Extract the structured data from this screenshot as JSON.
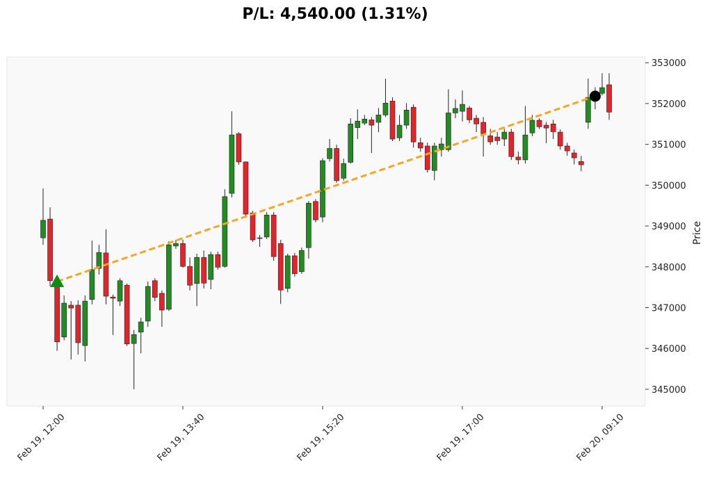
{
  "chart_data": {
    "type": "candlestick",
    "title": "P/L: 4,540.00 (1.31%)",
    "y_label": "Price",
    "up_color": "#228b22",
    "down_color": "#e3242b",
    "line_color": "#f5a623",
    "categories": [
      "Feb 19, 12:00",
      null,
      null,
      null,
      null,
      null,
      null,
      null,
      null,
      null,
      null,
      null,
      null,
      null,
      null,
      null,
      null,
      null,
      null,
      null,
      "Feb 19, 13:40",
      null,
      null,
      null,
      null,
      null,
      null,
      null,
      null,
      null,
      null,
      null,
      null,
      null,
      null,
      null,
      null,
      null,
      null,
      null,
      "Feb 19, 15:20",
      null,
      null,
      null,
      null,
      null,
      null,
      null,
      null,
      null,
      null,
      null,
      null,
      null,
      null,
      null,
      null,
      null,
      null,
      null,
      "Feb 19, 17:00",
      null,
      null,
      null,
      null,
      null,
      null,
      null,
      null,
      null,
      null,
      null,
      null,
      null,
      null,
      null,
      null,
      null,
      null,
      null,
      "Feb 20, 09:10",
      null
    ],
    "open": [
      348710,
      349170,
      347660,
      346280,
      347060,
      347060,
      346070,
      347200,
      347960,
      348340,
      347260,
      347160,
      347550,
      346120,
      346400,
      346670,
      347660,
      347350,
      346960,
      348510,
      348570,
      348010,
      347590,
      348230,
      347690,
      348300,
      348010,
      349800,
      351260,
      350570,
      349320,
      348710,
      348730,
      349270,
      348570,
      347470,
      348270,
      347880,
      348470,
      349600,
      349220,
      350650,
      350900,
      350170,
      350560,
      351410,
      351520,
      351600,
      351540,
      351720,
      352060,
      351160,
      351470,
      351910,
      351040,
      350960,
      350360,
      350870,
      350870,
      351770,
      351810,
      351890,
      351640,
      351540,
      351210,
      351180,
      351130,
      351300,
      350690,
      350620,
      351280,
      351590,
      351470,
      351500,
      351300,
      350960,
      350790,
      350580,
      351540,
      352150,
      352250,
      352460
    ],
    "high": [
      349920,
      349460,
      347760,
      347300,
      347160,
      347180,
      347300,
      348640,
      348540,
      348920,
      347320,
      347720,
      347590,
      346450,
      346750,
      347640,
      347720,
      347420,
      348630,
      348660,
      348660,
      348230,
      348320,
      348400,
      348370,
      348370,
      349900,
      351810,
      351300,
      350580,
      349370,
      348780,
      349340,
      349340,
      348660,
      348320,
      348340,
      348470,
      349610,
      349660,
      350660,
      351130,
      350990,
      350650,
      351640,
      351860,
      351720,
      351670,
      351890,
      352610,
      352150,
      351720,
      352010,
      351980,
      351160,
      351040,
      351040,
      351160,
      352350,
      352100,
      352320,
      351940,
      351720,
      351670,
      351380,
      351300,
      351380,
      351380,
      350820,
      351940,
      351720,
      351640,
      351550,
      351600,
      351370,
      351040,
      350870,
      350720,
      352610,
      352400,
      352745,
      352745
    ],
    "low": [
      348540,
      347520,
      345940,
      346200,
      345730,
      345850,
      345680,
      347080,
      347810,
      347080,
      346330,
      347040,
      346060,
      345000,
      345880,
      346530,
      347160,
      346530,
      346920,
      348440,
      347980,
      347420,
      347040,
      347470,
      347450,
      347930,
      347980,
      349700,
      350500,
      349220,
      348610,
      348490,
      348680,
      348150,
      347090,
      347380,
      347760,
      347830,
      348200,
      349090,
      349090,
      350580,
      350060,
      350110,
      350530,
      351130,
      351470,
      350790,
      351300,
      351670,
      351080,
      351080,
      351380,
      350920,
      350820,
      350310,
      350120,
      350700,
      350820,
      351640,
      351560,
      351520,
      351300,
      350700,
      350990,
      350990,
      350960,
      350620,
      350510,
      350530,
      351200,
      351380,
      351030,
      351130,
      350870,
      350720,
      350510,
      350340,
      351380,
      351860,
      352200,
      351600
    ],
    "close": [
      349140,
      347660,
      346160,
      347110,
      346990,
      346140,
      347160,
      347930,
      348350,
      347280,
      347230,
      347660,
      346110,
      346340,
      346650,
      347520,
      347250,
      346940,
      348540,
      348570,
      348010,
      347550,
      348230,
      347600,
      348300,
      347990,
      349720,
      351230,
      350570,
      349290,
      348660,
      348700,
      349270,
      348250,
      347430,
      348270,
      347830,
      348400,
      349560,
      349150,
      350600,
      350900,
      350110,
      350530,
      351500,
      351570,
      351620,
      351470,
      351720,
      352010,
      351130,
      351470,
      351840,
      351060,
      350910,
      350380,
      350960,
      351010,
      351770,
      351880,
      351980,
      351600,
      351500,
      351260,
      351060,
      351090,
      351300,
      350700,
      350620,
      351230,
      351590,
      351430,
      351400,
      351310,
      350960,
      350840,
      350670,
      350500,
      352150,
      352230,
      352390,
      351790
    ],
    "trade": {
      "entry_index": 2,
      "entry_price": 347640,
      "entry_color": "#118a11",
      "exit_index": 79,
      "exit_price": 352180,
      "exit_color": "#000000"
    },
    "ylim": [
      344590,
      353140
    ],
    "yticks": [
      345000,
      346000,
      347000,
      348000,
      349000,
      350000,
      351000,
      352000,
      353000
    ]
  }
}
